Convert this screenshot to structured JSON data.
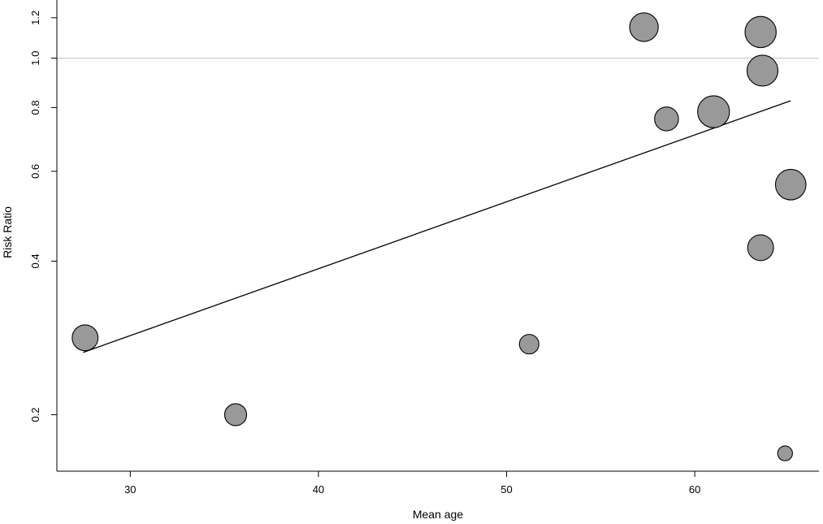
{
  "chart_data": {
    "type": "scatter",
    "title": "",
    "xlabel": "Mean age",
    "ylabel": "Risk Ratio",
    "x_scale": "linear",
    "y_scale": "log",
    "xlim": [
      26.1,
      66.6
    ],
    "ylim": [
      0.155,
      1.3
    ],
    "x_ticks": [
      30,
      40,
      50,
      60
    ],
    "y_ticks": [
      0.2,
      0.4,
      0.6,
      0.8,
      1.0,
      1.2
    ],
    "y_tick_labels": [
      "0.2",
      "0.4",
      "0.6",
      "0.8",
      "1.0",
      "1.2"
    ],
    "grid": false,
    "reference_line": {
      "y": 1.0,
      "color": "#c8c8c8"
    },
    "regression_line": {
      "x": [
        27.5,
        65.1
      ],
      "y": [
        0.265,
        0.825
      ],
      "color": "#000000"
    },
    "marker_color": "#999999",
    "marker_edge_color": "#000000",
    "points": [
      {
        "x": 27.6,
        "y": 0.283,
        "weight": 0.55
      },
      {
        "x": 35.6,
        "y": 0.2,
        "weight": 0.35
      },
      {
        "x": 51.2,
        "y": 0.275,
        "weight": 0.25
      },
      {
        "x": 57.3,
        "y": 1.15,
        "weight": 0.72
      },
      {
        "x": 58.5,
        "y": 0.76,
        "weight": 0.45
      },
      {
        "x": 61.0,
        "y": 0.785,
        "weight": 0.95
      },
      {
        "x": 63.5,
        "y": 1.125,
        "weight": 0.9
      },
      {
        "x": 63.6,
        "y": 0.945,
        "weight": 0.88
      },
      {
        "x": 63.5,
        "y": 0.425,
        "weight": 0.55
      },
      {
        "x": 65.1,
        "y": 0.565,
        "weight": 0.85
      },
      {
        "x": 64.8,
        "y": 0.168,
        "weight": 0.1
      }
    ]
  }
}
